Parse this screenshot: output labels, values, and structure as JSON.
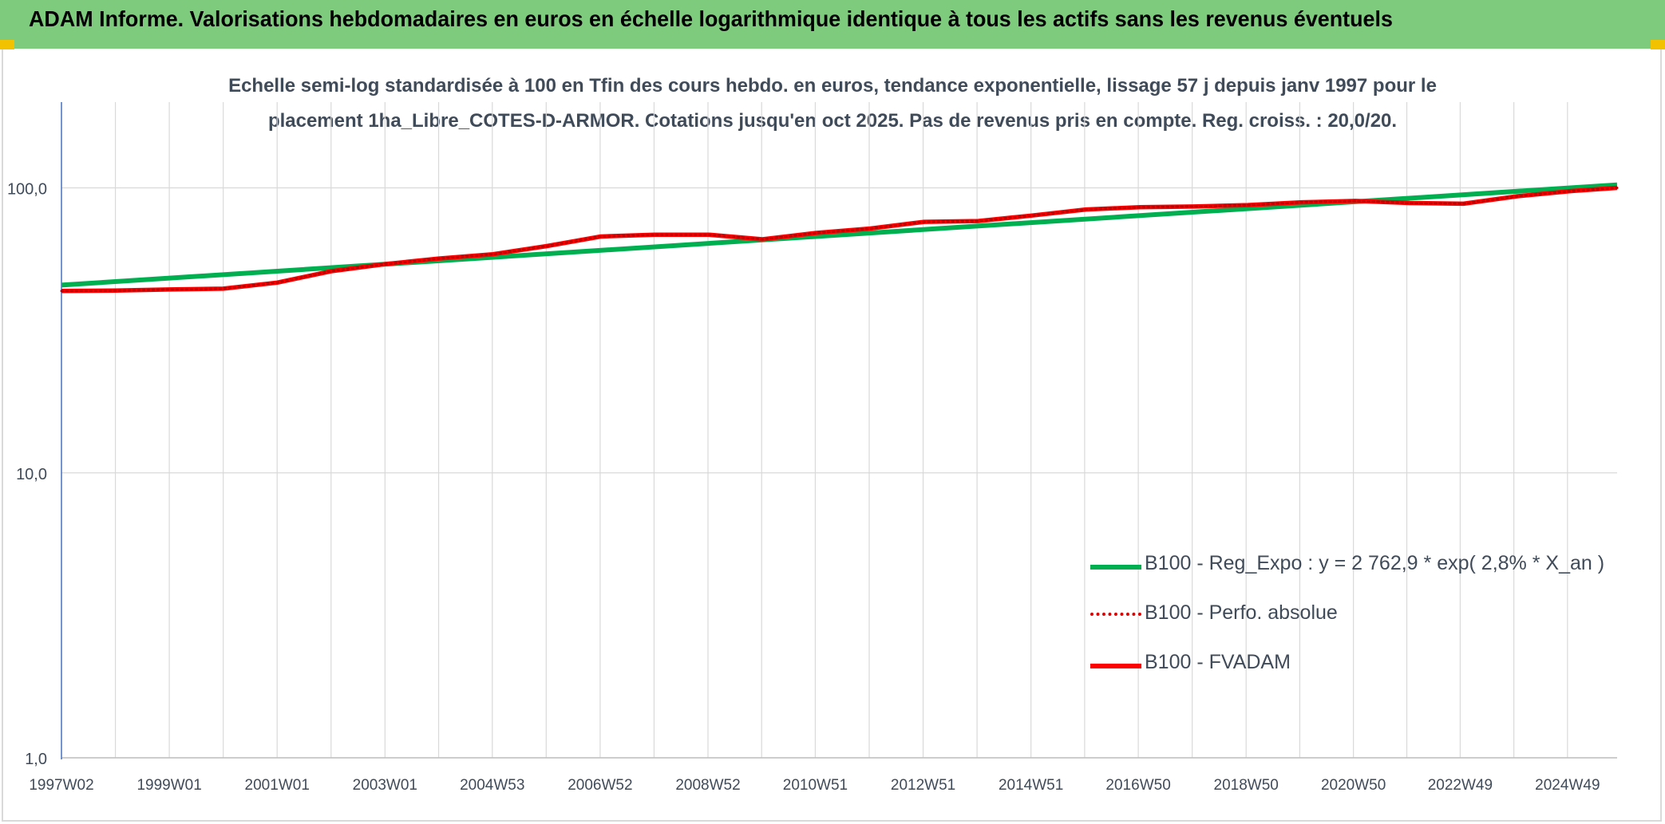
{
  "banner": {
    "title": "ADAM Informe. Valorisations hebdomadaires en euros en échelle logarithmique identique à tous les actifs sans les revenus éventuels"
  },
  "colors": {
    "banner_bg": "#7ecb7e",
    "regression": "#00b050",
    "fvadam": "#ff0000",
    "perf_absolue": "#c00000",
    "grid": "#d9d9d9",
    "axis": "#4472c4",
    "text": "#404b5a"
  },
  "chart_data": {
    "type": "line",
    "title_line1": "Echelle semi-log standardisée à 100 en Tfin des cours hebdo. en euros, tendance exponentielle, lissage 57 j depuis janv 1997 pour le",
    "title_line2": "placement 1ha_Libre_COTES-D-ARMOR. Cotations jusqu'en oct 2025. Pas de revenus pris en compte. Reg. croiss. : 20,0/20.",
    "y_scale": "log",
    "ylim": [
      1,
      200
    ],
    "y_ticks": [
      1,
      10,
      100
    ],
    "y_tick_labels": [
      "1,0",
      "10,0",
      "100,0"
    ],
    "xlim": [
      1997.0,
      2025.85
    ],
    "x_tick_positions": [
      1997.0,
      1999.0,
      2001.0,
      2003.0,
      2004.99,
      2006.99,
      2008.99,
      2010.98,
      2012.98,
      2014.98,
      2016.97,
      2018.97,
      2020.96,
      2022.94,
      2024.93
    ],
    "x_tick_labels": [
      "1997W02",
      "1999W01",
      "2001W01",
      "2003W01",
      "2004W53",
      "2006W52",
      "2008W52",
      "2010W51",
      "2012W51",
      "2014W51",
      "2016W50",
      "2018W50",
      "2020W50",
      "2022W49",
      "2024W49"
    ],
    "grid": true,
    "legend_position": "right",
    "series": [
      {
        "name": "B100 - Reg_Expo : y = 2 762,9 * exp( 2,8% *  X_an )",
        "style": "solid-thick",
        "x": [
          1997.0,
          2025.85
        ],
        "values": [
          45.6,
          102.5
        ]
      },
      {
        "name": "B100 - Perfo. absolue",
        "style": "dotted",
        "x": [
          1997.0,
          1998.0,
          1999.0,
          2000.0,
          2001.0,
          2002.0,
          2003.0,
          2004.0,
          2005.0,
          2006.0,
          2007.0,
          2008.0,
          2009.0,
          2010.0,
          2011.0,
          2012.0,
          2013.0,
          2014.0,
          2015.0,
          2016.0,
          2017.0,
          2018.0,
          2019.0,
          2020.0,
          2021.0,
          2022.0,
          2023.0,
          2024.0,
          2025.0,
          2025.85
        ],
        "values": [
          43.5,
          43.6,
          44.0,
          44.3,
          46.5,
          51.0,
          54.0,
          56.5,
          58.5,
          62.5,
          67.5,
          68.5,
          68.5,
          66.0,
          69.5,
          72.0,
          76.0,
          76.5,
          80.0,
          84.0,
          85.5,
          86.0,
          87.0,
          89.0,
          90.0,
          88.5,
          88.0,
          93.5,
          97.5,
          100.0
        ]
      },
      {
        "name": "B100 - FVADAM",
        "style": "solid-thick",
        "x": [
          1997.0,
          1998.0,
          1999.0,
          2000.0,
          2001.0,
          2002.0,
          2003.0,
          2004.0,
          2005.0,
          2006.0,
          2007.0,
          2008.0,
          2009.0,
          2010.0,
          2011.0,
          2012.0,
          2013.0,
          2014.0,
          2015.0,
          2016.0,
          2017.0,
          2018.0,
          2019.0,
          2020.0,
          2021.0,
          2022.0,
          2023.0,
          2024.0,
          2025.0,
          2025.85
        ],
        "values": [
          43.5,
          43.6,
          44.0,
          44.3,
          46.5,
          51.0,
          54.0,
          56.5,
          58.5,
          62.5,
          67.5,
          68.5,
          68.5,
          66.0,
          69.5,
          72.0,
          76.0,
          76.5,
          80.0,
          84.0,
          85.5,
          86.0,
          87.0,
          89.0,
          90.0,
          88.5,
          88.0,
          93.5,
          97.5,
          100.0
        ]
      }
    ]
  }
}
